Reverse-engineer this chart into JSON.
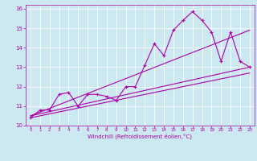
{
  "xlabel": "Windchill (Refroidissement éolien,°C)",
  "bg_color": "#cce8f0",
  "line_color": "#aa00aa",
  "xlim": [
    -0.5,
    23.5
  ],
  "ylim": [
    10,
    16.2
  ],
  "xticks": [
    0,
    1,
    2,
    3,
    4,
    5,
    6,
    7,
    8,
    9,
    10,
    11,
    12,
    13,
    14,
    15,
    16,
    17,
    18,
    19,
    20,
    21,
    22,
    23
  ],
  "yticks": [
    10,
    11,
    12,
    13,
    14,
    15,
    16
  ],
  "data_x": [
    0,
    1,
    2,
    3,
    4,
    5,
    6,
    7,
    8,
    9,
    10,
    11,
    12,
    13,
    14,
    15,
    16,
    17,
    18,
    19,
    20,
    21,
    22,
    23
  ],
  "data_y": [
    10.4,
    10.8,
    10.8,
    11.6,
    11.7,
    11.0,
    11.6,
    11.6,
    11.5,
    11.3,
    12.0,
    12.0,
    13.1,
    14.2,
    13.6,
    14.9,
    15.4,
    15.85,
    15.4,
    14.8,
    13.3,
    14.8,
    13.3,
    13.0
  ],
  "trend1_x": [
    0,
    23
  ],
  "trend1_y": [
    10.5,
    13.0
  ],
  "trend2_x": [
    0,
    23
  ],
  "trend2_y": [
    10.5,
    14.9
  ],
  "trend3_x": [
    0,
    23
  ],
  "trend3_y": [
    10.4,
    12.7
  ]
}
